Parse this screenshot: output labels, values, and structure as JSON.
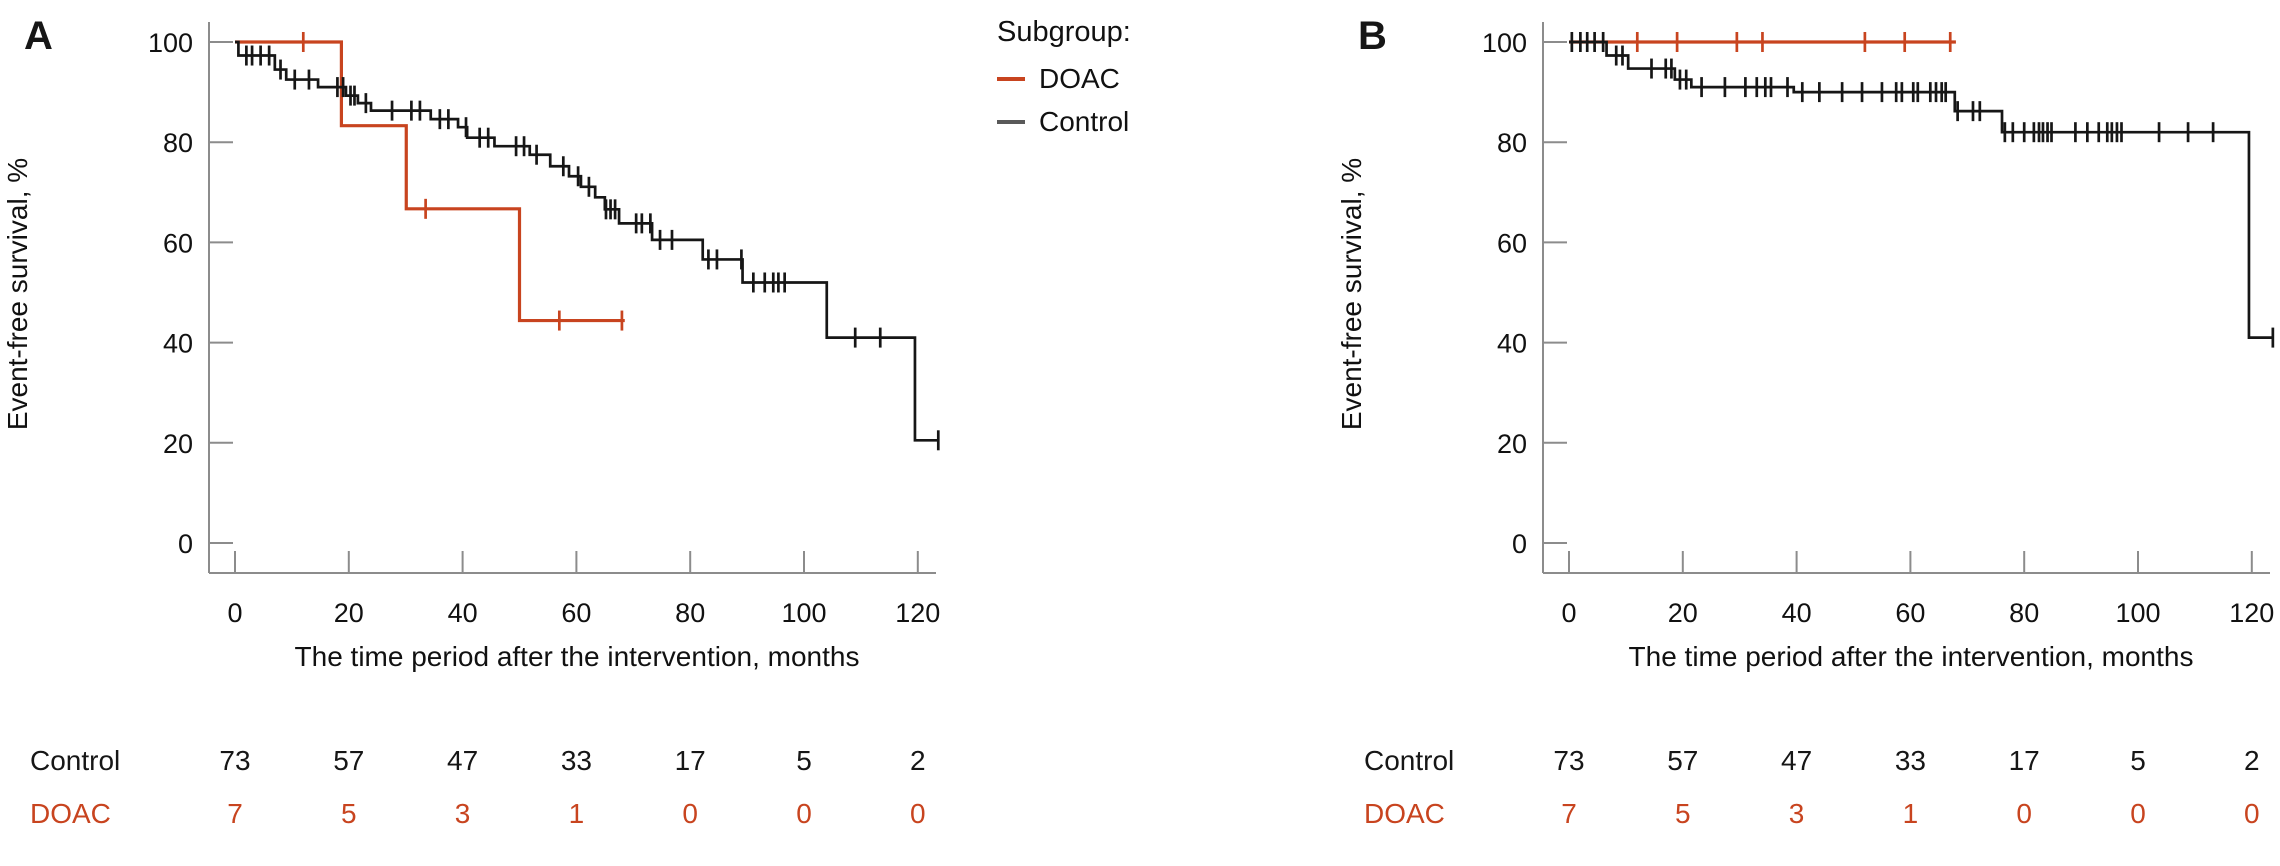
{
  "chart_data": {
    "type": "line",
    "subtype": "kaplan-meier-step",
    "xlabel": "The time period after the intervention, months",
    "ylabel": "Event-free survival, %",
    "xticks": [
      0,
      20,
      40,
      60,
      80,
      100,
      120
    ],
    "yticks": [
      0,
      20,
      40,
      60,
      80,
      100
    ],
    "xlim": [
      0,
      125
    ],
    "ylim": [
      0,
      100
    ],
    "grid": false,
    "legend_position": "top-center-between-panels",
    "panels": [
      {
        "label": "A",
        "series": [
          {
            "name": "Control",
            "color": "#161616",
            "steps": [
              [
                0,
                100
              ],
              [
                0.6,
                97.3
              ],
              [
                7,
                94.5
              ],
              [
                9,
                92.5
              ],
              [
                14.6,
                91
              ],
              [
                19.5,
                89.3
              ],
              [
                21.6,
                87.8
              ],
              [
                23.9,
                86.3
              ],
              [
                34.4,
                84.6
              ],
              [
                39.2,
                83
              ],
              [
                40.8,
                80.9
              ],
              [
                45.6,
                79.2
              ],
              [
                51.8,
                77.5
              ],
              [
                55.4,
                75.2
              ],
              [
                58.7,
                73.2
              ],
              [
                60.8,
                71.1
              ],
              [
                63.3,
                69
              ],
              [
                65,
                66.6
              ],
              [
                67.5,
                63.8
              ],
              [
                73.3,
                60.5
              ],
              [
                82.2,
                56.6
              ],
              [
                89.2,
                52
              ],
              [
                104,
                41
              ],
              [
                119.5,
                20.5
              ]
            ],
            "end_t": 123.6,
            "censors": [
              [
                2,
                97.3
              ],
              [
                3,
                97.3
              ],
              [
                4.5,
                97.3
              ],
              [
                6,
                97.3
              ],
              [
                8,
                94.5
              ],
              [
                10.5,
                92.5
              ],
              [
                13,
                92.5
              ],
              [
                18,
                91
              ],
              [
                19,
                91
              ],
              [
                20.3,
                89.3
              ],
              [
                21,
                89.3
              ],
              [
                23,
                87.8
              ],
              [
                27.6,
                86.3
              ],
              [
                31,
                86.3
              ],
              [
                32.5,
                86.3
              ],
              [
                36,
                84.6
              ],
              [
                37.5,
                84.6
              ],
              [
                40.6,
                83
              ],
              [
                43,
                80.9
              ],
              [
                44.5,
                80.9
              ],
              [
                49.4,
                79.2
              ],
              [
                50.8,
                79.2
              ],
              [
                53,
                77.5
              ],
              [
                57.7,
                75.2
              ],
              [
                60.3,
                73.2
              ],
              [
                62.2,
                71.1
              ],
              [
                65.2,
                66.6
              ],
              [
                66,
                66.6
              ],
              [
                66.8,
                66.6
              ],
              [
                70.5,
                63.8
              ],
              [
                71.5,
                63.8
              ],
              [
                73,
                63.8
              ],
              [
                74.7,
                60.5
              ],
              [
                76.8,
                60.5
              ],
              [
                83.2,
                56.6
              ],
              [
                84.7,
                56.6
              ],
              [
                89,
                56.6
              ],
              [
                91.1,
                52
              ],
              [
                93.1,
                52
              ],
              [
                94.6,
                52
              ],
              [
                95.5,
                52
              ],
              [
                96.6,
                52
              ],
              [
                109,
                41
              ],
              [
                113.4,
                41
              ],
              [
                123.6,
                20.5
              ]
            ]
          },
          {
            "name": "DOAC",
            "color": "#c8441f",
            "steps": [
              [
                0,
                100
              ],
              [
                18.7,
                83.3
              ],
              [
                30.1,
                66.7
              ],
              [
                50,
                44.4
              ]
            ],
            "end_t": 68.5,
            "censors": [
              [
                12,
                100
              ],
              [
                33.5,
                66.7
              ],
              [
                57,
                44.4
              ],
              [
                68,
                44.4
              ]
            ]
          }
        ]
      },
      {
        "label": "B",
        "series": [
          {
            "name": "Control",
            "color": "#161616",
            "steps": [
              [
                0,
                100
              ],
              [
                6.6,
                97.3
              ],
              [
                10.4,
                94.7
              ],
              [
                18.6,
                92.5
              ],
              [
                21.5,
                91
              ],
              [
                39.5,
                90
              ],
              [
                67.8,
                86.2
              ],
              [
                76.1,
                82
              ],
              [
                119.5,
                41
              ]
            ],
            "end_t": 123.7,
            "censors": [
              [
                0.5,
                100
              ],
              [
                2,
                100
              ],
              [
                3.2,
                100
              ],
              [
                4.5,
                100
              ],
              [
                6,
                100
              ],
              [
                8.3,
                97.3
              ],
              [
                9.4,
                97.3
              ],
              [
                14.5,
                94.7
              ],
              [
                17,
                94.7
              ],
              [
                18,
                94.7
              ],
              [
                19.5,
                92.5
              ],
              [
                20.6,
                92.5
              ],
              [
                23.3,
                91
              ],
              [
                27.4,
                91
              ],
              [
                31,
                91
              ],
              [
                33,
                91
              ],
              [
                34.5,
                91
              ],
              [
                35.5,
                91
              ],
              [
                38.4,
                91
              ],
              [
                41,
                90
              ],
              [
                44,
                90
              ],
              [
                48,
                90
              ],
              [
                51.5,
                90
              ],
              [
                55,
                90
              ],
              [
                57.5,
                90
              ],
              [
                58.5,
                90
              ],
              [
                60.5,
                90
              ],
              [
                61.3,
                90
              ],
              [
                63.5,
                90
              ],
              [
                64.5,
                90
              ],
              [
                65.5,
                90
              ],
              [
                66.2,
                90
              ],
              [
                68.3,
                86.2
              ],
              [
                71,
                86.2
              ],
              [
                72.2,
                86.2
              ],
              [
                76.6,
                82
              ],
              [
                78,
                82
              ],
              [
                80,
                82
              ],
              [
                81.7,
                82
              ],
              [
                82.6,
                82
              ],
              [
                83.3,
                82
              ],
              [
                84.1,
                82
              ],
              [
                84.8,
                82
              ],
              [
                89,
                82
              ],
              [
                91.1,
                82
              ],
              [
                93.1,
                82
              ],
              [
                94.6,
                82
              ],
              [
                95.4,
                82
              ],
              [
                96.3,
                82
              ],
              [
                97.1,
                82
              ],
              [
                103.7,
                82
              ],
              [
                108.8,
                82
              ],
              [
                113.2,
                82
              ],
              [
                123.7,
                41
              ]
            ]
          },
          {
            "name": "DOAC",
            "color": "#c8441f",
            "steps": [
              [
                0,
                100
              ]
            ],
            "end_t": 68,
            "censors": [
              [
                12,
                100
              ],
              [
                19,
                100
              ],
              [
                29.5,
                100
              ],
              [
                34,
                100
              ],
              [
                52,
                100
              ],
              [
                59,
                100
              ],
              [
                67,
                100
              ]
            ]
          }
        ]
      }
    ],
    "risk_table": {
      "times": [
        0,
        20,
        40,
        60,
        80,
        100,
        120
      ],
      "rows": [
        {
          "label": "Control",
          "color": "#161616",
          "counts": [
            "73",
            "57",
            "47",
            "33",
            "17",
            "5",
            "2"
          ]
        },
        {
          "label": "DOAC",
          "color": "#c8441f",
          "counts": [
            "7",
            "5",
            "3",
            "1",
            "0",
            "0",
            "0"
          ]
        }
      ]
    },
    "legend": {
      "title": "Subgroup:",
      "items": [
        {
          "label": "DOAC",
          "color": "#c8441f"
        },
        {
          "label": "Control",
          "color": "#595959"
        }
      ]
    },
    "axis_color": "#8c8c8c",
    "tick_label_color": "#111111"
  }
}
